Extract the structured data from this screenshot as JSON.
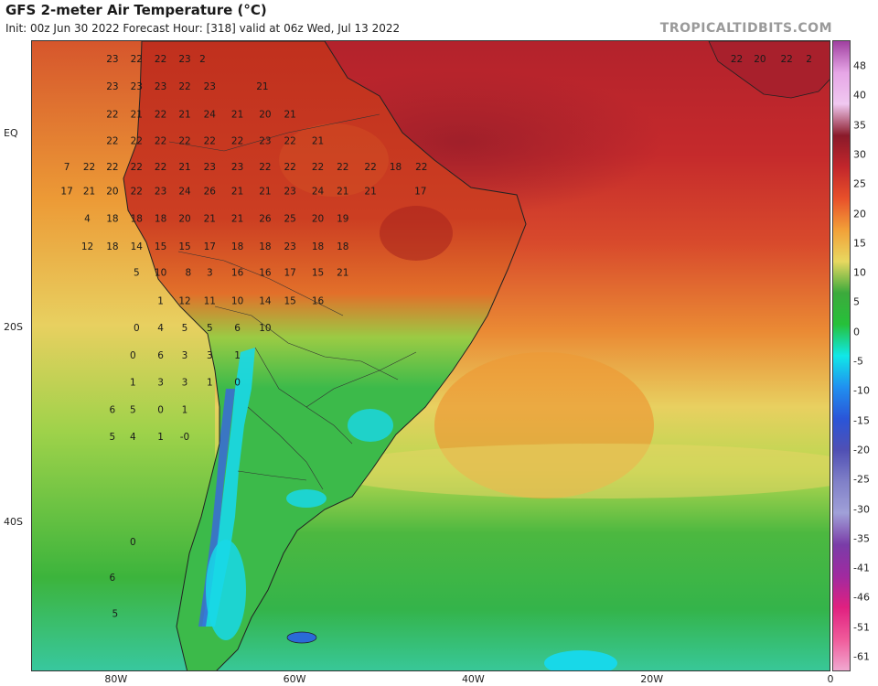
{
  "header": {
    "title": "GFS 2-meter Air Temperature (°C)",
    "subtitle": "Init: 00z Jun 30 2022   Forecast Hour: [318]   valid at 06z Wed, Jul 13 2022",
    "credit": "TROPICALTIDBITS.COM"
  },
  "axes": {
    "latitudes": [
      {
        "label": "EQ",
        "lat": 0
      },
      {
        "label": "20S",
        "lat": -20
      },
      {
        "label": "40S",
        "lat": -40
      }
    ],
    "longitudes": [
      {
        "label": "80W",
        "lon": -80
      },
      {
        "label": "60W",
        "lon": -60
      },
      {
        "label": "40W",
        "lon": -40
      },
      {
        "label": "20W",
        "lon": -20
      },
      {
        "label": "0",
        "lon": 0
      }
    ],
    "extent": {
      "lon_min": -89.5,
      "lon_max": 0,
      "lat_min": -55.4,
      "lat_max": 9.6
    }
  },
  "colorbar": {
    "ticks": [
      "48",
      "40",
      "35",
      "30",
      "25",
      "20",
      "15",
      "10",
      "5",
      "0",
      "-5",
      "-10",
      "-15",
      "-20",
      "-25",
      "-30",
      "-35",
      "-41",
      "-46",
      "-51",
      "-61"
    ],
    "colors": [
      "#a040a0",
      "#e6a6e6",
      "#f0c8f0",
      "#8a1a2a",
      "#c2262b",
      "#e8502a",
      "#f2a038",
      "#e8d860",
      "#3caa3c",
      "#26c13a",
      "#10e8e8",
      "#2090f0",
      "#2a55d8",
      "#5050b4",
      "#8080c8",
      "#a0a0d8",
      "#7a3ca8",
      "#a02aa0",
      "#e02080",
      "#f05a9a",
      "#f0a8d0"
    ]
  },
  "regions": {
    "colors": {
      "ocean_hot": "#b8262e",
      "ocean_warm": "#d64a2c",
      "ocean_mild": "#ec9a36",
      "ocean_yellow": "#e6d664",
      "ocean_lime": "#9ed24a",
      "ocean_green": "#3cb43c",
      "ocean_teal": "#34c89a",
      "land_hot": "#c23a22",
      "land_orange": "#e06a2a",
      "land_green": "#3cba4a",
      "land_cyan": "#18d8e8",
      "land_blue": "#3a6ad8"
    }
  },
  "temperatures": [
    {
      "v": "23",
      "lon": -80.5,
      "lat": 7.7
    },
    {
      "v": "22",
      "lon": -77.8,
      "lat": 7.7
    },
    {
      "v": "22",
      "lon": -75.1,
      "lat": 7.7
    },
    {
      "v": "23",
      "lon": -72.4,
      "lat": 7.7
    },
    {
      "v": "2",
      "lon": -70.4,
      "lat": 7.7
    },
    {
      "v": "23",
      "lon": -80.5,
      "lat": 4.9
    },
    {
      "v": "23",
      "lon": -77.8,
      "lat": 4.9
    },
    {
      "v": "23",
      "lon": -75.1,
      "lat": 4.9
    },
    {
      "v": "22",
      "lon": -72.4,
      "lat": 4.9
    },
    {
      "v": "23",
      "lon": -69.6,
      "lat": 4.9
    },
    {
      "v": "21",
      "lon": -63.7,
      "lat": 4.9
    },
    {
      "v": "22",
      "lon": -80.5,
      "lat": 2.0
    },
    {
      "v": "21",
      "lon": -77.8,
      "lat": 2.0
    },
    {
      "v": "22",
      "lon": -75.1,
      "lat": 2.0
    },
    {
      "v": "21",
      "lon": -72.4,
      "lat": 2.0
    },
    {
      "v": "24",
      "lon": -69.6,
      "lat": 2.0
    },
    {
      "v": "21",
      "lon": -66.5,
      "lat": 2.0
    },
    {
      "v": "20",
      "lon": -63.4,
      "lat": 2.0
    },
    {
      "v": "21",
      "lon": -60.6,
      "lat": 2.0
    },
    {
      "v": "22",
      "lon": -80.5,
      "lat": -0.7
    },
    {
      "v": "22",
      "lon": -77.8,
      "lat": -0.7
    },
    {
      "v": "22",
      "lon": -75.1,
      "lat": -0.7
    },
    {
      "v": "22",
      "lon": -72.4,
      "lat": -0.7
    },
    {
      "v": "22",
      "lon": -69.6,
      "lat": -0.7
    },
    {
      "v": "22",
      "lon": -66.5,
      "lat": -0.7
    },
    {
      "v": "23",
      "lon": -63.4,
      "lat": -0.7
    },
    {
      "v": "22",
      "lon": -60.6,
      "lat": -0.7
    },
    {
      "v": "21",
      "lon": -57.5,
      "lat": -0.7
    },
    {
      "v": "7",
      "lon": -85.6,
      "lat": -3.4
    },
    {
      "v": "22",
      "lon": -83.1,
      "lat": -3.4
    },
    {
      "v": "22",
      "lon": -80.5,
      "lat": -3.4
    },
    {
      "v": "22",
      "lon": -77.8,
      "lat": -3.4
    },
    {
      "v": "22",
      "lon": -75.1,
      "lat": -3.4
    },
    {
      "v": "21",
      "lon": -72.4,
      "lat": -3.4
    },
    {
      "v": "23",
      "lon": -69.6,
      "lat": -3.4
    },
    {
      "v": "23",
      "lon": -66.5,
      "lat": -3.4
    },
    {
      "v": "22",
      "lon": -63.4,
      "lat": -3.4
    },
    {
      "v": "22",
      "lon": -60.6,
      "lat": -3.4
    },
    {
      "v": "22",
      "lon": -57.5,
      "lat": -3.4
    },
    {
      "v": "22",
      "lon": -54.7,
      "lat": -3.4
    },
    {
      "v": "22",
      "lon": -51.6,
      "lat": -3.4
    },
    {
      "v": "18",
      "lon": -48.8,
      "lat": -3.4
    },
    {
      "v": "22",
      "lon": -45.9,
      "lat": -3.4
    },
    {
      "v": "17",
      "lon": -85.6,
      "lat": -5.9
    },
    {
      "v": "21",
      "lon": -83.1,
      "lat": -5.9
    },
    {
      "v": "20",
      "lon": -80.5,
      "lat": -5.9
    },
    {
      "v": "22",
      "lon": -77.8,
      "lat": -5.9
    },
    {
      "v": "23",
      "lon": -75.1,
      "lat": -5.9
    },
    {
      "v": "24",
      "lon": -72.4,
      "lat": -5.9
    },
    {
      "v": "26",
      "lon": -69.6,
      "lat": -5.9
    },
    {
      "v": "21",
      "lon": -66.5,
      "lat": -5.9
    },
    {
      "v": "21",
      "lon": -63.4,
      "lat": -5.9
    },
    {
      "v": "23",
      "lon": -60.6,
      "lat": -5.9
    },
    {
      "v": "24",
      "lon": -57.5,
      "lat": -5.9
    },
    {
      "v": "21",
      "lon": -54.7,
      "lat": -5.9
    },
    {
      "v": "21",
      "lon": -51.6,
      "lat": -5.9
    },
    {
      "v": "17",
      "lon": -46.0,
      "lat": -5.9
    },
    {
      "v": "4",
      "lon": -83.3,
      "lat": -8.7
    },
    {
      "v": "18",
      "lon": -80.5,
      "lat": -8.7
    },
    {
      "v": "18",
      "lon": -77.8,
      "lat": -8.7
    },
    {
      "v": "18",
      "lon": -75.1,
      "lat": -8.7
    },
    {
      "v": "20",
      "lon": -72.4,
      "lat": -8.7
    },
    {
      "v": "21",
      "lon": -69.6,
      "lat": -8.7
    },
    {
      "v": "21",
      "lon": -66.5,
      "lat": -8.7
    },
    {
      "v": "26",
      "lon": -63.4,
      "lat": -8.7
    },
    {
      "v": "25",
      "lon": -60.6,
      "lat": -8.7
    },
    {
      "v": "20",
      "lon": -57.5,
      "lat": -8.7
    },
    {
      "v": "19",
      "lon": -54.7,
      "lat": -8.7
    },
    {
      "v": "12",
      "lon": -83.3,
      "lat": -11.6
    },
    {
      "v": "18",
      "lon": -80.5,
      "lat": -11.6
    },
    {
      "v": "14",
      "lon": -77.8,
      "lat": -11.6
    },
    {
      "v": "15",
      "lon": -75.1,
      "lat": -11.6
    },
    {
      "v": "15",
      "lon": -72.4,
      "lat": -11.6
    },
    {
      "v": "17",
      "lon": -69.6,
      "lat": -11.6
    },
    {
      "v": "18",
      "lon": -66.5,
      "lat": -11.6
    },
    {
      "v": "18",
      "lon": -63.4,
      "lat": -11.6
    },
    {
      "v": "23",
      "lon": -60.6,
      "lat": -11.6
    },
    {
      "v": "18",
      "lon": -57.5,
      "lat": -11.6
    },
    {
      "v": "18",
      "lon": -54.7,
      "lat": -11.6
    },
    {
      "v": "5",
      "lon": -77.8,
      "lat": -14.3
    },
    {
      "v": "10",
      "lon": -75.1,
      "lat": -14.3
    },
    {
      "v": "8",
      "lon": -72.0,
      "lat": -14.3
    },
    {
      "v": "3",
      "lon": -69.6,
      "lat": -14.3
    },
    {
      "v": "16",
      "lon": -66.5,
      "lat": -14.3
    },
    {
      "v": "16",
      "lon": -63.4,
      "lat": -14.3
    },
    {
      "v": "17",
      "lon": -60.6,
      "lat": -14.3
    },
    {
      "v": "15",
      "lon": -57.5,
      "lat": -14.3
    },
    {
      "v": "21",
      "lon": -54.7,
      "lat": -14.3
    },
    {
      "v": "1",
      "lon": -75.1,
      "lat": -17.2
    },
    {
      "v": "12",
      "lon": -72.4,
      "lat": -17.2
    },
    {
      "v": "11",
      "lon": -69.6,
      "lat": -17.2
    },
    {
      "v": "10",
      "lon": -66.5,
      "lat": -17.2
    },
    {
      "v": "14",
      "lon": -63.4,
      "lat": -17.2
    },
    {
      "v": "15",
      "lon": -60.6,
      "lat": -17.2
    },
    {
      "v": "16",
      "lon": -57.5,
      "lat": -17.2
    },
    {
      "v": "0",
      "lon": -77.8,
      "lat": -20.0
    },
    {
      "v": "4",
      "lon": -75.1,
      "lat": -20.0
    },
    {
      "v": "5",
      "lon": -72.4,
      "lat": -20.0
    },
    {
      "v": "5",
      "lon": -69.6,
      "lat": -20.0
    },
    {
      "v": "6",
      "lon": -66.5,
      "lat": -20.0
    },
    {
      "v": "10",
      "lon": -63.4,
      "lat": -20.0
    },
    {
      "v": "0",
      "lon": -78.2,
      "lat": -22.8
    },
    {
      "v": "6",
      "lon": -75.1,
      "lat": -22.8
    },
    {
      "v": "3",
      "lon": -72.4,
      "lat": -22.8
    },
    {
      "v": "3",
      "lon": -69.6,
      "lat": -22.8
    },
    {
      "v": "1",
      "lon": -66.5,
      "lat": -22.8
    },
    {
      "v": "1",
      "lon": -78.2,
      "lat": -25.6
    },
    {
      "v": "3",
      "lon": -75.1,
      "lat": -25.6
    },
    {
      "v": "3",
      "lon": -72.4,
      "lat": -25.6
    },
    {
      "v": "1",
      "lon": -69.6,
      "lat": -25.6
    },
    {
      "v": "0",
      "lon": -66.5,
      "lat": -25.6
    },
    {
      "v": "6",
      "lon": -80.5,
      "lat": -28.4
    },
    {
      "v": "5",
      "lon": -78.2,
      "lat": -28.4
    },
    {
      "v": "0",
      "lon": -75.1,
      "lat": -28.4
    },
    {
      "v": "1",
      "lon": -72.4,
      "lat": -28.4
    },
    {
      "v": "5",
      "lon": -80.5,
      "lat": -31.2
    },
    {
      "v": "4",
      "lon": -78.2,
      "lat": -31.2
    },
    {
      "v": "1",
      "lon": -75.1,
      "lat": -31.2
    },
    {
      "v": "-0",
      "lon": -72.4,
      "lat": -31.2
    },
    {
      "v": "0",
      "lon": -78.2,
      "lat": -42.0
    },
    {
      "v": "6",
      "lon": -80.5,
      "lat": -45.7
    },
    {
      "v": "5",
      "lon": -80.2,
      "lat": -49.4
    },
    {
      "v": "22",
      "lon": -10.6,
      "lat": 7.7
    },
    {
      "v": "20",
      "lon": -8.0,
      "lat": 7.7
    },
    {
      "v": "22",
      "lon": -5.0,
      "lat": 7.7
    },
    {
      "v": "2",
      "lon": -2.5,
      "lat": 7.7
    }
  ]
}
